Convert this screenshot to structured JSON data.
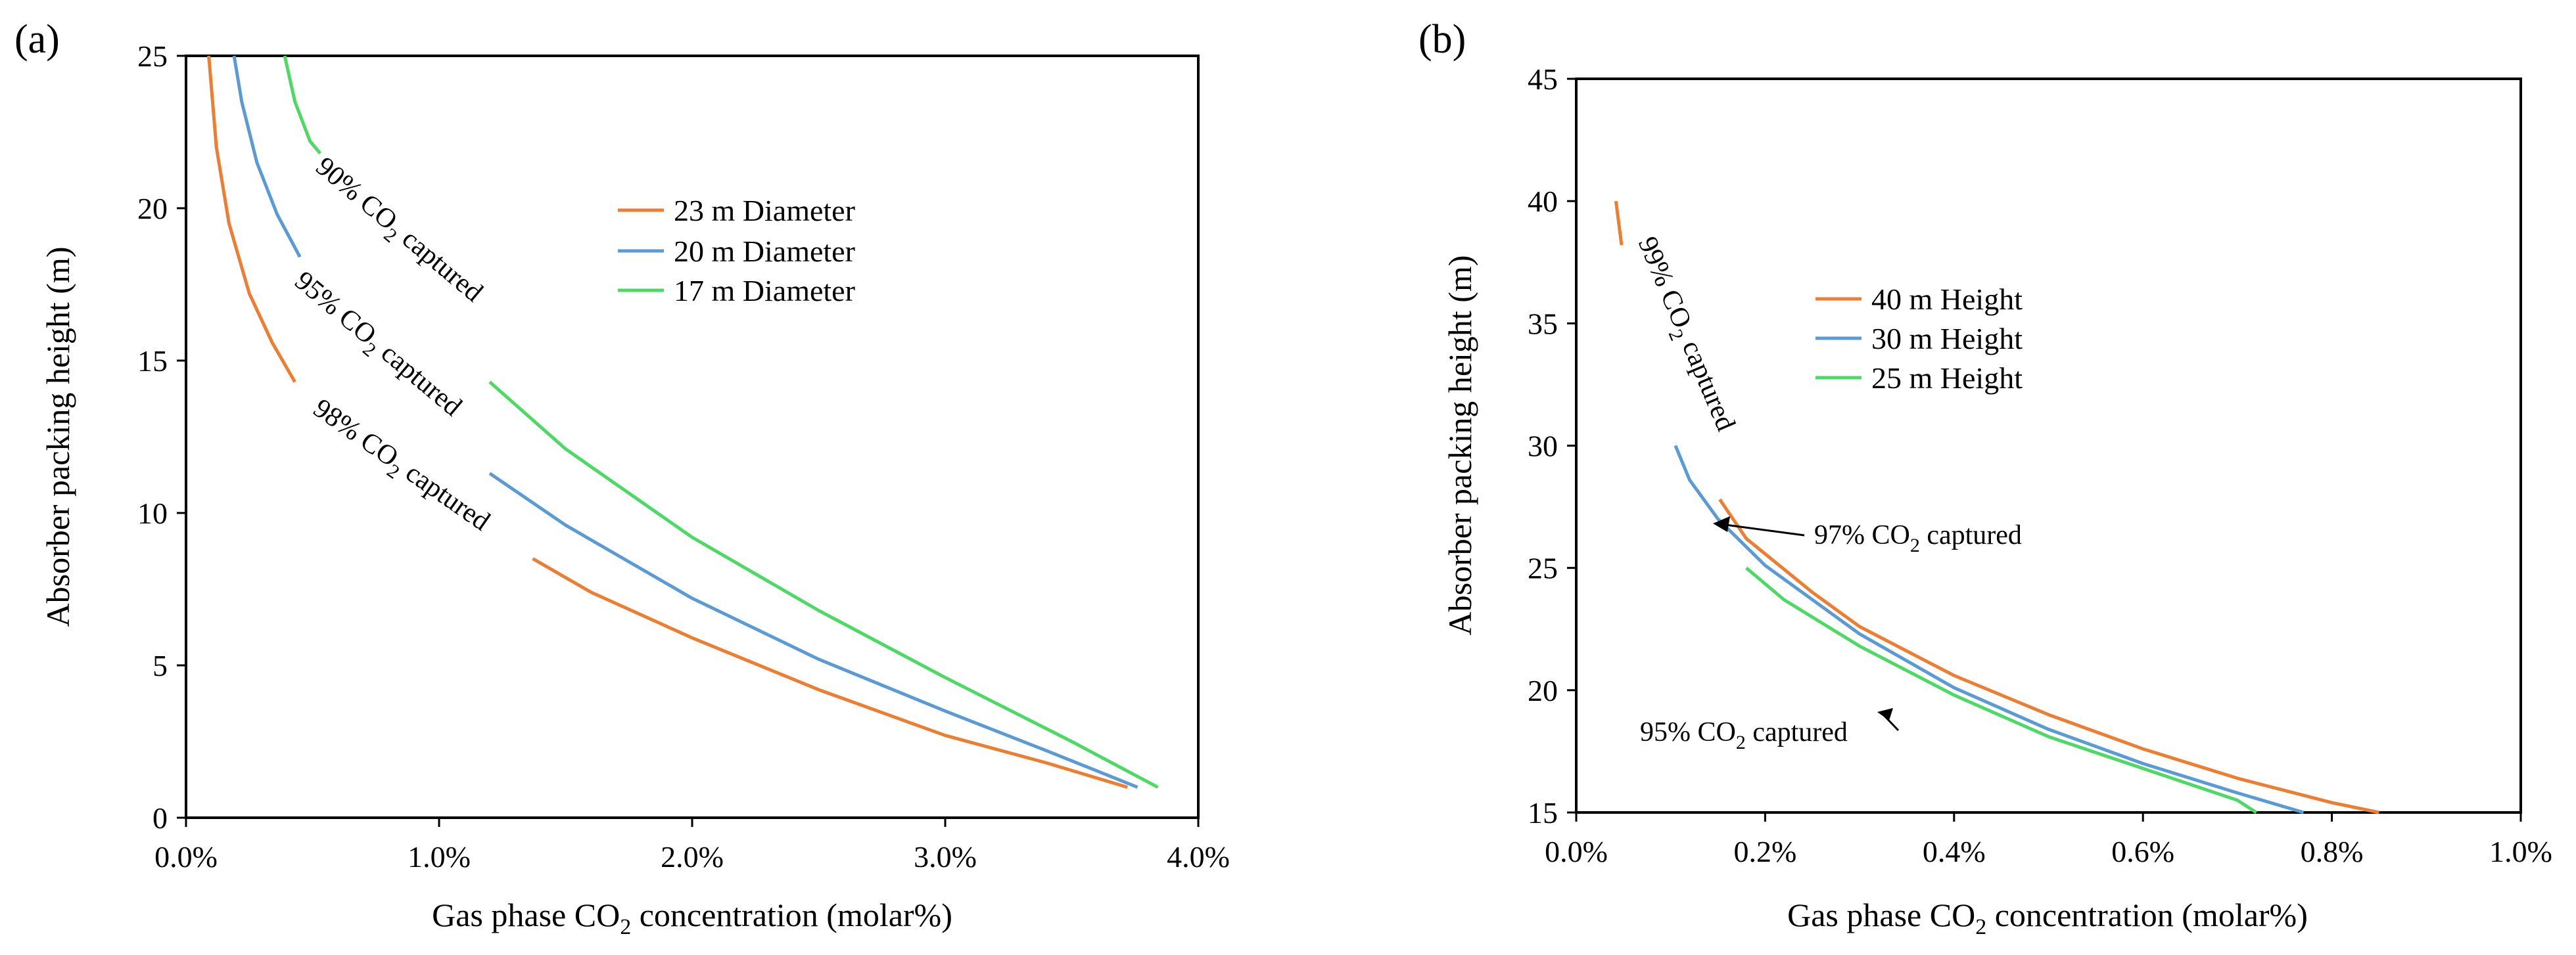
{
  "chart_data": [
    {
      "panel": "(a)",
      "type": "line",
      "title": "",
      "xlabel_parts": [
        "Gas phase CO",
        "2",
        " concentration (molar%)"
      ],
      "ylabel": "Absorber packing height (m)",
      "xlim": [
        0,
        4
      ],
      "ylim": [
        0,
        25
      ],
      "xticks": [
        0,
        1,
        2,
        3,
        4
      ],
      "xtick_labels": [
        "0.0%",
        "1.0%",
        "2.0%",
        "3.0%",
        "4.0%"
      ],
      "yticks": [
        0,
        5,
        10,
        15,
        20,
        25
      ],
      "ytick_labels": [
        "0",
        "5",
        "10",
        "15",
        "20",
        "25"
      ],
      "grid": false,
      "legend_position": "top-center",
      "series": [
        {
          "name": "23 m Diameter",
          "color": "#ED7D31",
          "segments": [
            [
              [
                0.09,
                25
              ],
              [
                0.12,
                22
              ],
              [
                0.17,
                19.5
              ],
              [
                0.25,
                17.2
              ],
              [
                0.34,
                15.6
              ],
              [
                0.43,
                14.3
              ]
            ],
            [
              [
                1.37,
                8.5
              ],
              [
                1.6,
                7.4
              ],
              [
                2.0,
                5.9
              ],
              [
                2.5,
                4.2
              ],
              [
                3.0,
                2.7
              ],
              [
                3.4,
                1.8
              ],
              [
                3.72,
                1.0
              ]
            ]
          ]
        },
        {
          "name": "20 m Diameter",
          "color": "#5B9BD5",
          "segments": [
            [
              [
                0.19,
                25
              ],
              [
                0.22,
                23.5
              ],
              [
                0.28,
                21.5
              ],
              [
                0.36,
                19.8
              ],
              [
                0.45,
                18.4
              ]
            ],
            [
              [
                1.2,
                11.3
              ],
              [
                1.5,
                9.6
              ],
              [
                2.0,
                7.2
              ],
              [
                2.5,
                5.2
              ],
              [
                3.0,
                3.5
              ],
              [
                3.4,
                2.2
              ],
              [
                3.76,
                1.0
              ]
            ]
          ]
        },
        {
          "name": "17 m Diameter",
          "color": "#4CD964",
          "segments": [
            [
              [
                0.39,
                25
              ],
              [
                0.43,
                23.5
              ],
              [
                0.49,
                22.2
              ],
              [
                0.53,
                21.8
              ]
            ],
            [
              [
                1.2,
                14.3
              ],
              [
                1.5,
                12.1
              ],
              [
                2.0,
                9.2
              ],
              [
                2.5,
                6.8
              ],
              [
                3.0,
                4.6
              ],
              [
                3.5,
                2.5
              ],
              [
                3.84,
                1.0
              ]
            ]
          ]
        }
      ],
      "annotations": [
        {
          "pre": "90% CO",
          "sub": "2",
          "post": " captured"
        },
        {
          "pre": "95% CO",
          "sub": "2",
          "post": " captured"
        },
        {
          "pre": "98% CO",
          "sub": "2",
          "post": " captured"
        }
      ]
    },
    {
      "panel": "(b)",
      "type": "line",
      "title": "",
      "xlabel_parts": [
        "Gas phase CO",
        "2",
        " concentration (molar%)"
      ],
      "ylabel": "Absorber packing height (m)",
      "xlim": [
        0,
        1
      ],
      "ylim": [
        15,
        45
      ],
      "xticks": [
        0,
        0.2,
        0.4,
        0.6,
        0.8,
        1.0
      ],
      "xtick_labels": [
        "0.0%",
        "0.2%",
        "0.4%",
        "0.6%",
        "0.8%",
        "1.0%"
      ],
      "yticks": [
        15,
        20,
        25,
        30,
        35,
        40,
        45
      ],
      "ytick_labels": [
        "15",
        "20",
        "25",
        "30",
        "35",
        "40",
        "45"
      ],
      "grid": false,
      "legend_position": "center-left",
      "series": [
        {
          "name": "40 m Height",
          "color": "#ED7D31",
          "segments": [
            [
              [
                0.042,
                40
              ],
              [
                0.048,
                38.2
              ]
            ],
            [
              [
                0.152,
                27.8
              ],
              [
                0.18,
                26.2
              ],
              [
                0.25,
                24
              ],
              [
                0.3,
                22.6
              ],
              [
                0.4,
                20.6
              ],
              [
                0.5,
                19
              ],
              [
                0.6,
                17.6
              ],
              [
                0.7,
                16.4
              ],
              [
                0.8,
                15.4
              ],
              [
                0.85,
                15
              ]
            ]
          ]
        },
        {
          "name": "30 m Height",
          "color": "#5B9BD5",
          "segments": [
            [
              [
                0.105,
                30
              ],
              [
                0.12,
                28.6
              ],
              [
                0.15,
                27
              ],
              [
                0.2,
                25.1
              ],
              [
                0.3,
                22.3
              ],
              [
                0.4,
                20.1
              ],
              [
                0.5,
                18.4
              ],
              [
                0.6,
                17
              ],
              [
                0.7,
                15.8
              ],
              [
                0.77,
                15
              ]
            ]
          ]
        },
        {
          "name": "25 m Height",
          "color": "#4CD964",
          "segments": [
            [
              [
                0.18,
                25
              ],
              [
                0.22,
                23.7
              ],
              [
                0.3,
                21.8
              ],
              [
                0.4,
                19.8
              ],
              [
                0.5,
                18.1
              ],
              [
                0.6,
                16.8
              ],
              [
                0.7,
                15.5
              ],
              [
                0.72,
                15
              ]
            ]
          ]
        }
      ],
      "annotations": [
        {
          "pre": "99% CO",
          "sub": "2",
          "post": " captured"
        },
        {
          "pre": "97% CO",
          "sub": "2",
          "post": " captured"
        },
        {
          "pre": "95% CO",
          "sub": "2",
          "post": " captured"
        }
      ]
    }
  ]
}
